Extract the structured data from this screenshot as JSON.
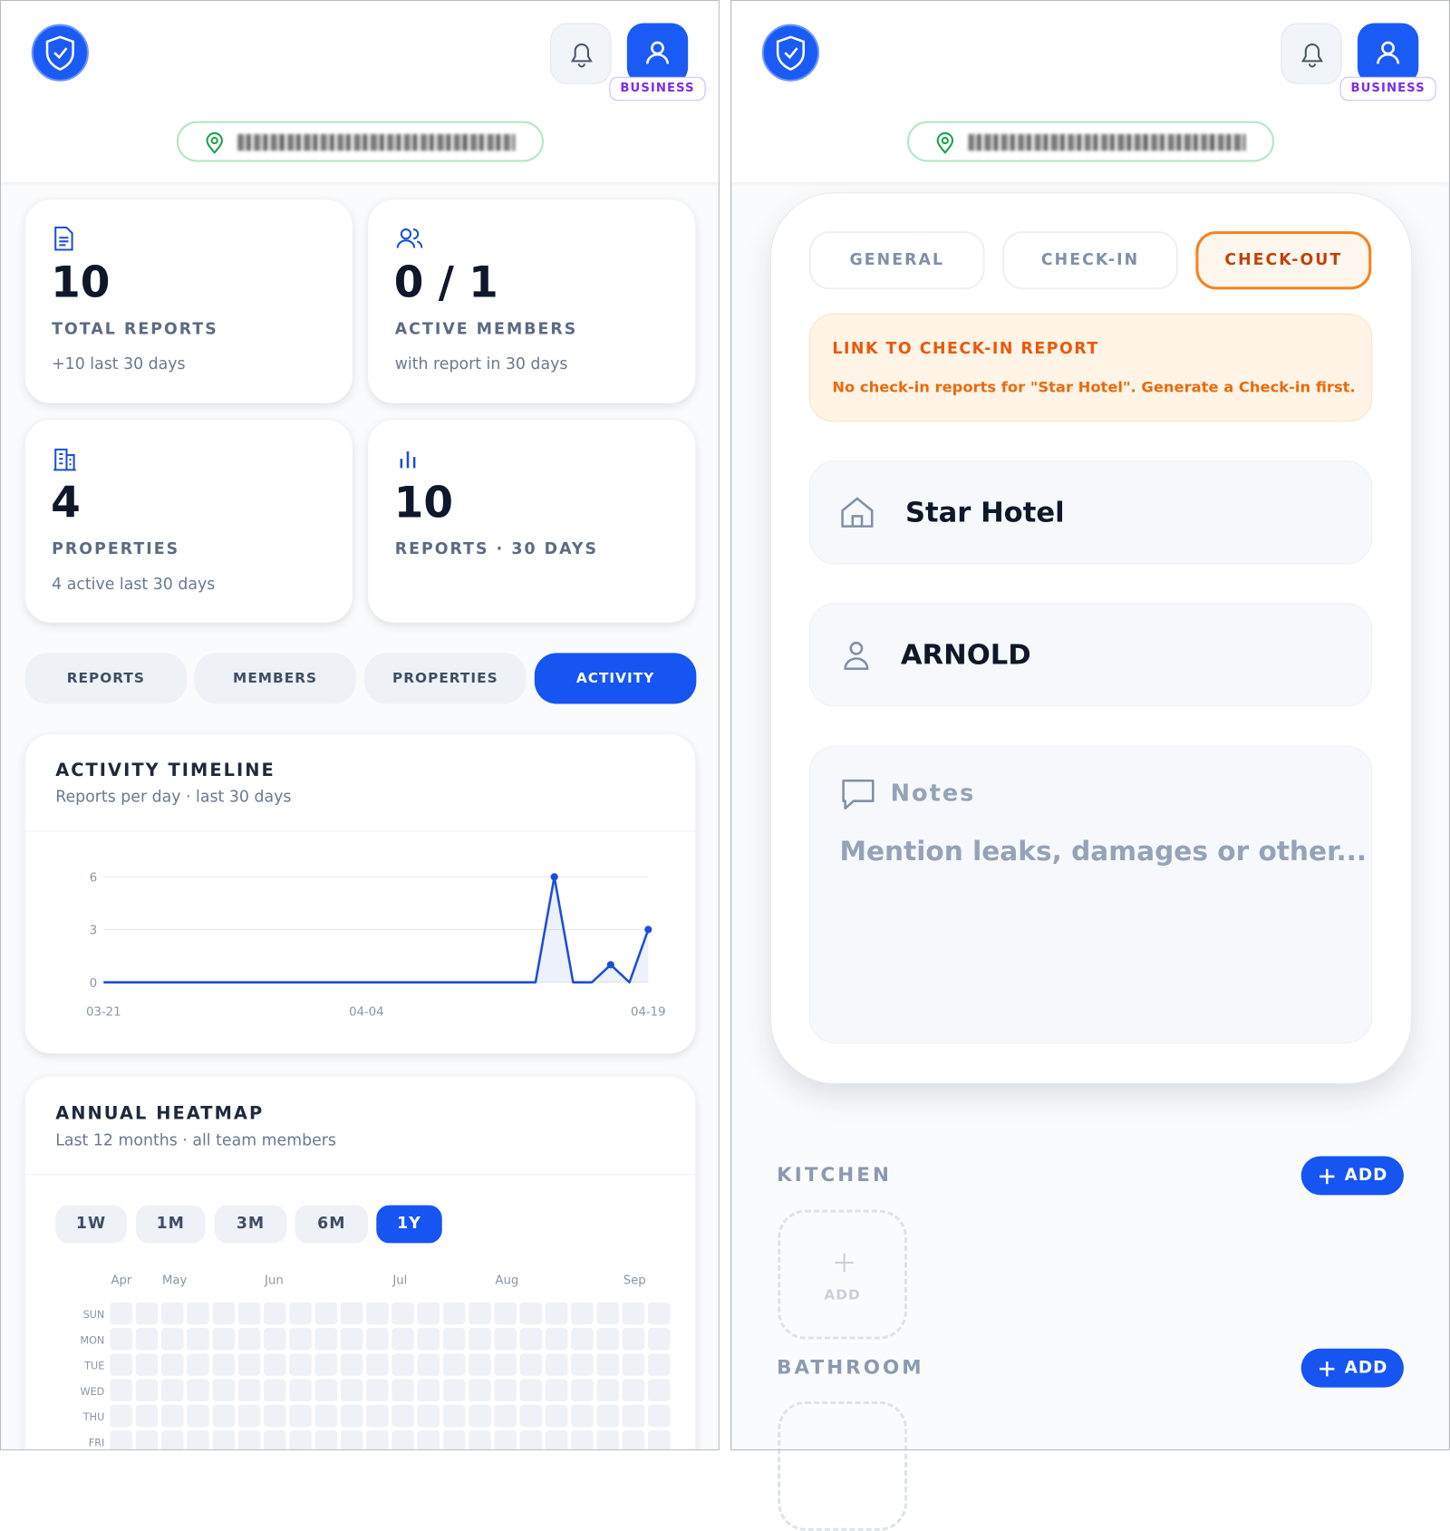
{
  "left": {
    "badge": "BUSINESS",
    "stats": [
      {
        "value": "10",
        "label": "TOTAL REPORTS",
        "sub": "+10 last 30 days"
      },
      {
        "value": "0 / 1",
        "label": "ACTIVE MEMBERS",
        "sub": "with report in 30 days"
      },
      {
        "value": "4",
        "label": "PROPERTIES",
        "sub": "4 active last 30 days"
      },
      {
        "value": "10",
        "label": "REPORTS · 30 DAYS"
      }
    ],
    "tabs": [
      "REPORTS",
      "MEMBERS",
      "PROPERTIES",
      "ACTIVITY"
    ],
    "active_tab": 3,
    "timeline": {
      "title": "ACTIVITY TIMELINE",
      "subtitle": "Reports per day · last 30 days",
      "chart": {
        "type": "line",
        "color": "#1d4ed8",
        "categories": [
          "03-21",
          null,
          null,
          null,
          null,
          null,
          null,
          null,
          null,
          null,
          null,
          null,
          null,
          null,
          "04-04",
          null,
          null,
          null,
          null,
          null,
          null,
          null,
          null,
          null,
          null,
          null,
          null,
          null,
          null,
          "04-19"
        ],
        "values": [
          0,
          0,
          0,
          0,
          0,
          0,
          0,
          0,
          0,
          0,
          0,
          0,
          0,
          0,
          0,
          0,
          0,
          0,
          0,
          0,
          0,
          0,
          0,
          0,
          6,
          0,
          0,
          1,
          0,
          3
        ],
        "ylim": [
          0,
          6
        ],
        "yticks": [
          0,
          3,
          6
        ],
        "grid": true
      }
    },
    "heatmap": {
      "title": "ANNUAL HEATMAP",
      "subtitle": "Last 12 months · all team members",
      "ranges": [
        "1W",
        "1M",
        "3M",
        "6M",
        "1Y"
      ],
      "active_range": 4,
      "months": [
        "Apr",
        "May",
        "Jun",
        "Jul",
        "Aug",
        "Sep"
      ],
      "days": [
        "SUN",
        "MON",
        "TUE",
        "WED",
        "THU",
        "FRI"
      ]
    }
  },
  "right": {
    "badge": "BUSINESS",
    "tabs": [
      "GENERAL",
      "CHECK-IN",
      "CHECK-OUT"
    ],
    "active_tab": 2,
    "alert": {
      "title": "LINK TO CHECK-IN REPORT",
      "text": "No check-in reports for \"Star Hotel\". Generate a Check-in first."
    },
    "property": "Star Hotel",
    "member": "ARNOLD",
    "notes": {
      "label": "Notes",
      "placeholder": "Mention leaks, damages or other..."
    },
    "sections": [
      {
        "name": "KITCHEN",
        "button": "ADD",
        "tile": "ADD"
      },
      {
        "name": "BATHROOM",
        "button": "ADD"
      }
    ]
  }
}
